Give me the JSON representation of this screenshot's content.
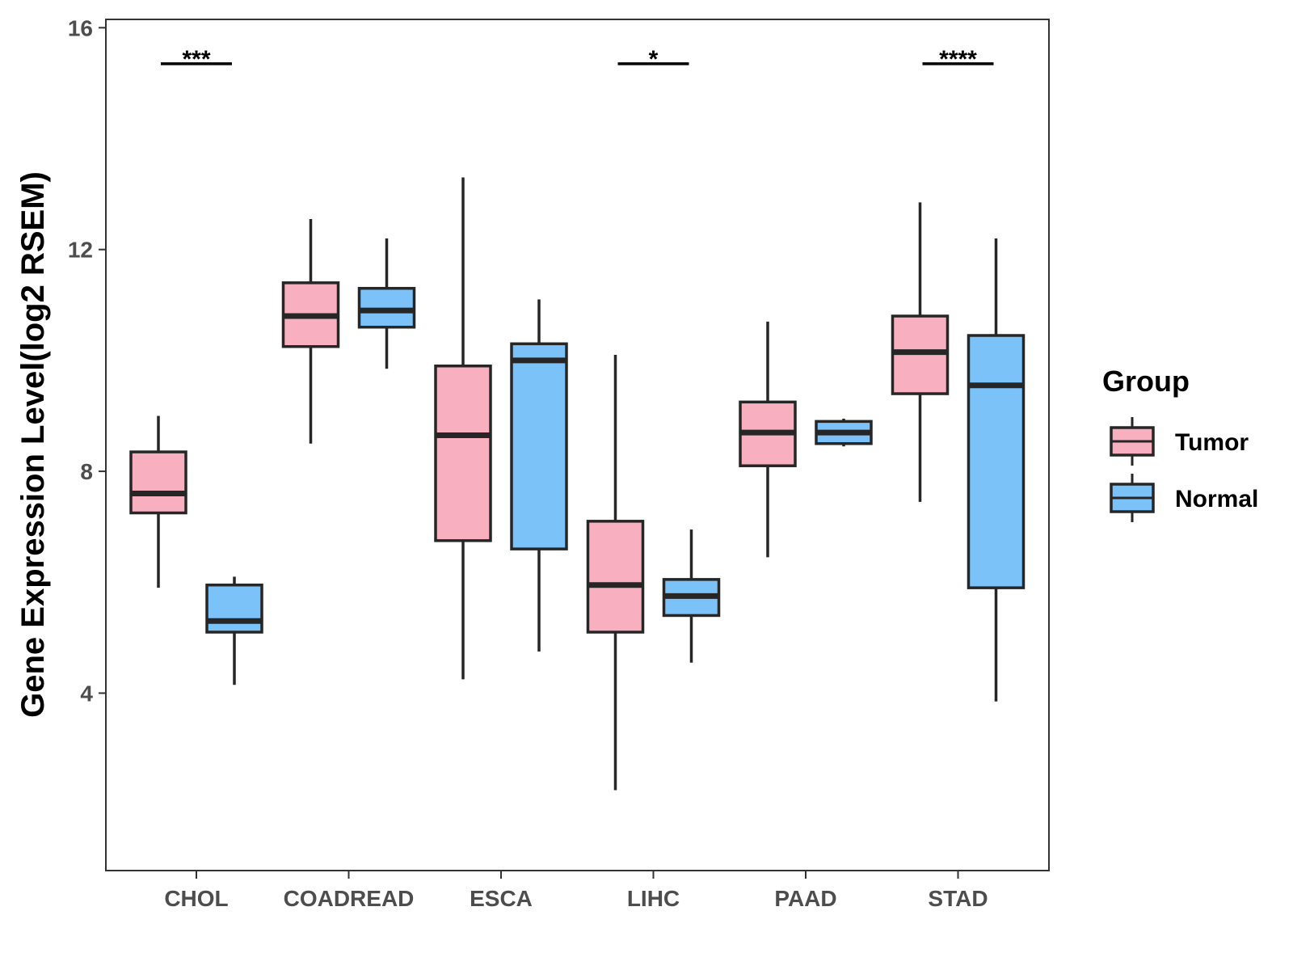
{
  "chart_data": {
    "type": "boxplot",
    "xlabel": "",
    "ylabel": "Gene Expression Level(log2 RSEM)",
    "ylim": [
      0.8,
      16.15
    ],
    "yticks": [
      4,
      8,
      12,
      16
    ],
    "categories": [
      "CHOL",
      "COADREAD",
      "ESCA",
      "LIHC",
      "PAAD",
      "STAD"
    ],
    "grid": false,
    "legend": {
      "title": "Group",
      "position": "right"
    },
    "series": [
      {
        "name": "Tumor",
        "color": "#f8b0c1",
        "boxes": [
          {
            "category": "CHOL",
            "whisker_low": 5.9,
            "q1": 7.25,
            "median": 7.6,
            "q3": 8.35,
            "whisker_high": 9.0
          },
          {
            "category": "COADREAD",
            "whisker_low": 8.5,
            "q1": 10.25,
            "median": 10.8,
            "q3": 11.4,
            "whisker_high": 12.55
          },
          {
            "category": "ESCA",
            "whisker_low": 4.25,
            "q1": 6.75,
            "median": 8.65,
            "q3": 9.9,
            "whisker_high": 13.3
          },
          {
            "category": "LIHC",
            "whisker_low": 2.25,
            "q1": 5.1,
            "median": 5.95,
            "q3": 7.1,
            "whisker_high": 10.1
          },
          {
            "category": "PAAD",
            "whisker_low": 6.45,
            "q1": 8.1,
            "median": 8.7,
            "q3": 9.25,
            "whisker_high": 10.7
          },
          {
            "category": "STAD",
            "whisker_low": 7.45,
            "q1": 9.4,
            "median": 10.15,
            "q3": 10.8,
            "whisker_high": 12.85
          }
        ]
      },
      {
        "name": "Normal",
        "color": "#7ac2f8",
        "boxes": [
          {
            "category": "CHOL",
            "whisker_low": 4.15,
            "q1": 5.1,
            "median": 5.3,
            "q3": 5.95,
            "whisker_high": 6.1
          },
          {
            "category": "COADREAD",
            "whisker_low": 9.85,
            "q1": 10.6,
            "median": 10.9,
            "q3": 11.3,
            "whisker_high": 12.2
          },
          {
            "category": "ESCA",
            "whisker_low": 4.75,
            "q1": 6.6,
            "median": 10.0,
            "q3": 10.3,
            "whisker_high": 11.1
          },
          {
            "category": "LIHC",
            "whisker_low": 4.55,
            "q1": 5.4,
            "median": 5.75,
            "q3": 6.05,
            "whisker_high": 6.95
          },
          {
            "category": "PAAD",
            "whisker_low": 8.45,
            "q1": 8.5,
            "median": 8.7,
            "q3": 8.9,
            "whisker_high": 8.95
          },
          {
            "category": "STAD",
            "whisker_low": 3.85,
            "q1": 5.9,
            "median": 9.55,
            "q3": 10.45,
            "whisker_high": 12.2
          }
        ]
      }
    ],
    "annotations": [
      {
        "category": "CHOL",
        "label": "***",
        "y": 15.35
      },
      {
        "category": "LIHC",
        "label": "*",
        "y": 15.35
      },
      {
        "category": "STAD",
        "label": "****",
        "y": 15.35
      }
    ]
  }
}
